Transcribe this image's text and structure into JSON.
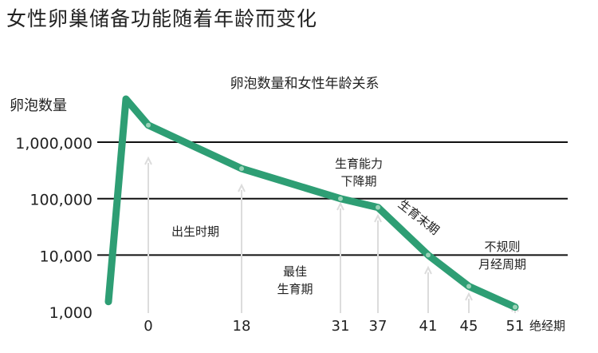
{
  "page": {
    "title": "女性卵巢储备功能随着年龄而变化"
  },
  "colors": {
    "curve": "#2e9e74",
    "grid": "#111111",
    "arrow": "#dcdcdc",
    "text": "#222222"
  },
  "chart_data": {
    "type": "line",
    "title": "卵泡数量和女性年龄关系",
    "ylabel": "卵泡数量",
    "xlabel": "",
    "y_scale": "log",
    "ylim": [
      1000,
      1000000
    ],
    "grid": "horizontal",
    "y_ticks": [
      {
        "value": 1000,
        "label": "1,000"
      },
      {
        "value": 10000,
        "label": "10,000"
      },
      {
        "value": 100000,
        "label": "100,000"
      },
      {
        "value": 1000000,
        "label": "1,000,000"
      }
    ],
    "x_ticks": [
      {
        "value": 0,
        "label": "0"
      },
      {
        "value": 18,
        "label": "18"
      },
      {
        "value": 31,
        "label": "31"
      },
      {
        "value": 37,
        "label": "37"
      },
      {
        "value": 41,
        "label": "41"
      },
      {
        "value": 45,
        "label": "45"
      },
      {
        "value": 51,
        "label": "51"
      }
    ],
    "x_end_label": "绝经期",
    "prenatal_points": [
      {
        "stage": "start",
        "y": 1500
      },
      {
        "stage": "peak",
        "y": 7000000
      }
    ],
    "series": [
      {
        "points": [
          {
            "x": 0,
            "y": 2000000
          },
          {
            "x": 18,
            "y": 340000
          },
          {
            "x": 31,
            "y": 100000
          },
          {
            "x": 37,
            "y": 70000
          },
          {
            "x": 41,
            "y": 10000
          },
          {
            "x": 45,
            "y": 2800
          },
          {
            "x": 51,
            "y": 1200
          }
        ]
      }
    ],
    "annotations": [
      {
        "text": "出生时期",
        "x": 0
      },
      {
        "text": "最佳\n生育期",
        "x": 18
      },
      {
        "text": "生育能力\n下降期",
        "x": 31
      },
      {
        "text": "生育末期",
        "x": 37
      },
      {
        "text": "不规则\n月经周期",
        "x": 45
      }
    ]
  }
}
